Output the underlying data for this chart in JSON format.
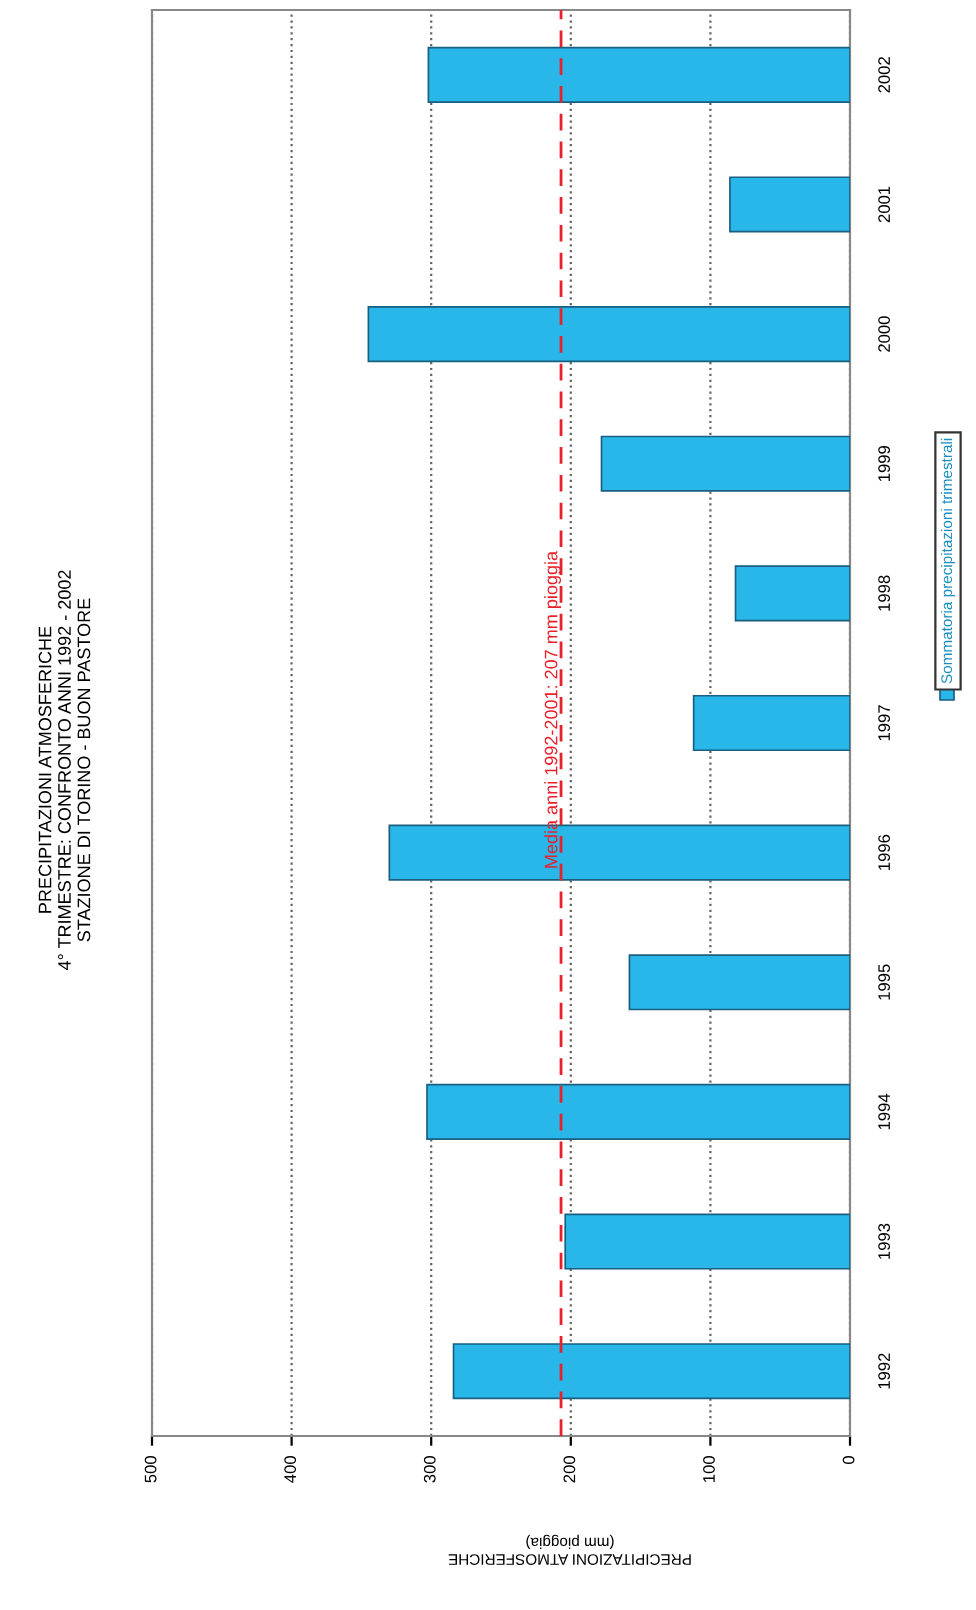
{
  "chart_data": {
    "type": "bar",
    "orientation": "horizontal",
    "title": "PRECIPITAZIONI ATMOSFERICHE\n4° TRIMESTRE: CONFRONTO ANNI 1992 - 2002\nSTAZIONE DI TORINO - BUON PASTORE",
    "xlabel": "PRECIPITAZIONI ATMOSFERICHE\n(mm pioggia)",
    "categories": [
      "2002",
      "2001",
      "2000",
      "1999",
      "1998",
      "1997",
      "1996",
      "1995",
      "1994",
      "1993",
      "1992"
    ],
    "series": [
      {
        "name": "Sommatoria precipitazioni trimestrali",
        "color": "#29b6e8",
        "values": [
          302,
          86,
          345,
          178,
          82,
          112,
          330,
          158,
          303,
          204,
          284
        ]
      }
    ],
    "xlim": [
      500,
      0
    ],
    "xticks": [
      0,
      100,
      200,
      300,
      400,
      500
    ],
    "ref_lines": [
      {
        "axis": "x",
        "value": 207,
        "label": "Media anni 1992-2001: 207 mm pioggia",
        "color": "#e8202a",
        "line_style": "dashed"
      }
    ],
    "grid": "x",
    "legend": "right"
  }
}
